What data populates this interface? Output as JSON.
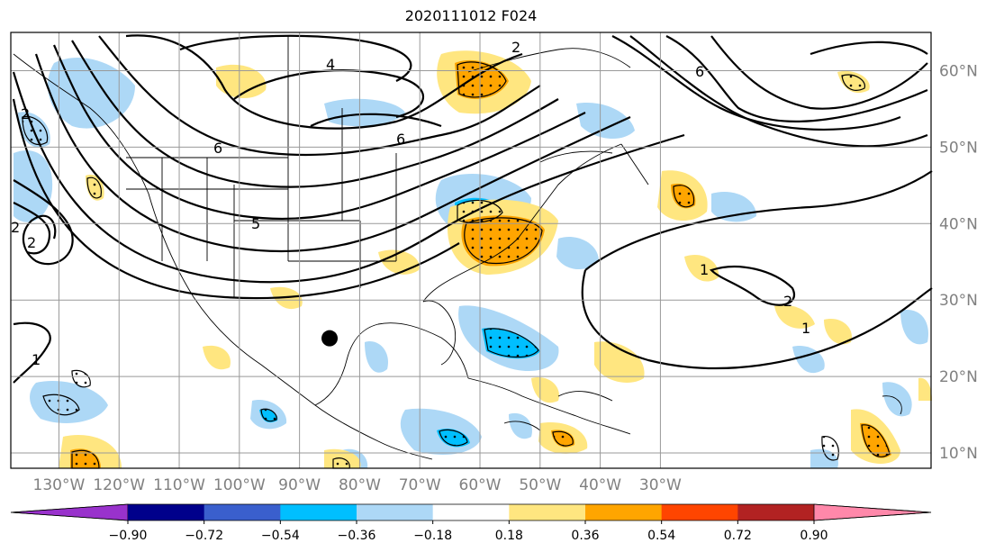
{
  "title": "2020111012 F024",
  "map": {
    "lon_range": [
      -138,
      15
    ],
    "lat_range": [
      8,
      65
    ],
    "lon_labels": [
      "130°W",
      "120°W",
      "110°W",
      "100°W",
      "90°W",
      "80°W",
      "70°W",
      "60°W",
      "50°W",
      "40°W",
      "30°W"
    ],
    "lon_values": [
      -130,
      -120,
      -110,
      -100,
      -90,
      -80,
      -70,
      -60,
      -50,
      -40,
      -30
    ],
    "lat_labels": [
      "10°N",
      "20°N",
      "30°N",
      "40°N",
      "50°N",
      "60°N"
    ],
    "lat_values": [
      10,
      20,
      30,
      40,
      50,
      60
    ],
    "label_color": "#808080",
    "gridline_color": "#999999",
    "marker": {
      "lon": -85,
      "lat": 25,
      "color": "#000000"
    },
    "contour_labels": [
      "4",
      "6",
      "6",
      "5",
      "2",
      "2",
      "2",
      "1",
      "1",
      "2",
      "6",
      "1",
      "2"
    ]
  },
  "colorbar": {
    "tick_labels": [
      "−0.90",
      "−0.72",
      "−0.54",
      "−0.36",
      "−0.18",
      "0.18",
      "0.36",
      "0.54",
      "0.72",
      "0.90"
    ],
    "colors": [
      "#9932cc",
      "#00008b",
      "#3a5fcd",
      "#00bfff",
      "#add8f6",
      "#ffffff",
      "#ffe680",
      "#ffa500",
      "#ff4500",
      "#b22222",
      "#ff88aa"
    ]
  }
}
